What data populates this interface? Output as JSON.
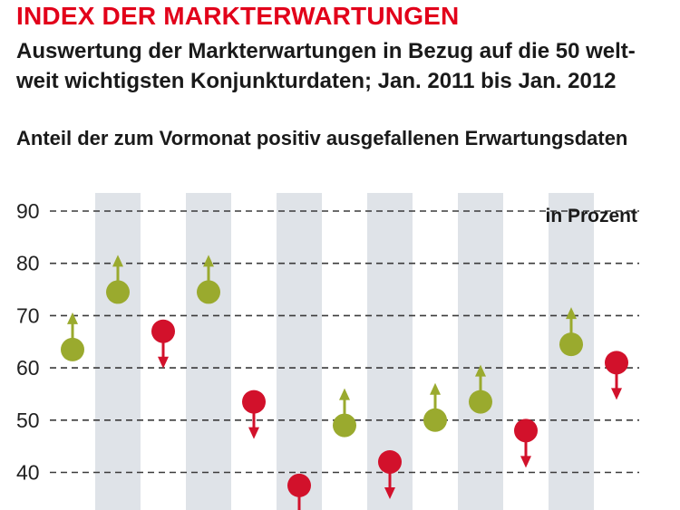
{
  "header": {
    "title": "INDEX DER MARKTERWARTUNGEN",
    "subtitle": "Auswertung der Markterwartungen in Bezug auf die 50 welt-weit wichtigsten Konjunkturdaten; Jan. 2011 bis Jan. 2012",
    "series_label": "Anteil der zum Vormonat positiv ausgefallenen Erwartungsdaten"
  },
  "colors": {
    "positive": "#9aaa2e",
    "negative": "#d2112b",
    "band": "#dfe3e8",
    "grid": "#3a3a3a"
  },
  "chart_data": {
    "type": "scatter",
    "title": "Anteil der zum Vormonat positiv ausgefallenen Erwartungsdaten",
    "unit_label": "in Prozent",
    "ylim": [
      35,
      90
    ],
    "yticks": [
      90,
      80,
      70,
      60,
      50,
      40
    ],
    "grid": true,
    "alternating_bands": true,
    "x": [
      1,
      2,
      3,
      4,
      5,
      6,
      7,
      8,
      9,
      10,
      11,
      12,
      13
    ],
    "values": [
      63.5,
      74.5,
      67,
      74.5,
      53.5,
      37.5,
      49,
      42,
      50,
      53.5,
      48,
      64.5,
      61
    ],
    "direction": [
      "up",
      "up",
      "down",
      "up",
      "down",
      "down",
      "up",
      "down",
      "up",
      "up",
      "down",
      "up",
      "down"
    ]
  }
}
